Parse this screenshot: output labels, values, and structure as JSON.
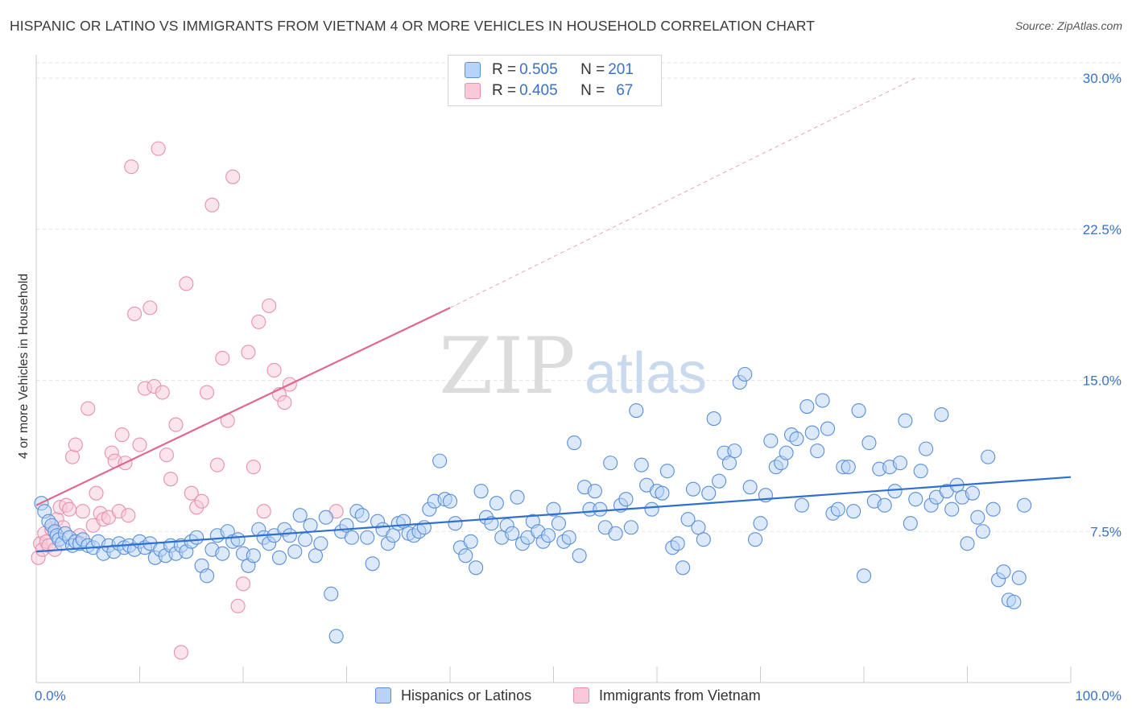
{
  "header": {
    "title": "HISPANIC OR LATINO VS IMMIGRANTS FROM VIETNAM 4 OR MORE VEHICLES IN HOUSEHOLD CORRELATION CHART",
    "source": "Source: ZipAtlas.com"
  },
  "watermark": {
    "zip": "ZIP",
    "atlas": "atlas"
  },
  "legend": {
    "rows": [
      {
        "r_label": "R = ",
        "r_value": "0.505",
        "n_label": "N = ",
        "n_value": "201"
      },
      {
        "r_label": "R = ",
        "r_value": "0.405",
        "n_label": "N = ",
        "n_value": "67"
      }
    ]
  },
  "bottom_legend": {
    "items": [
      "Hispanics or Latinos",
      "Immigrants from Vietnam"
    ]
  },
  "colors": {
    "blue_fill": "#b8d3f5",
    "blue_stroke": "#5a8fd6",
    "blue_line": "#2f6fd0",
    "pink_fill": "#f8c9d8",
    "pink_stroke": "#e890ac",
    "pink_line": "#e06890",
    "tick_label": "#3a72c8",
    "grid": "#e2e2e2"
  },
  "chart_data": {
    "type": "scatter",
    "title": "HISPANIC OR LATINO VS IMMIGRANTS FROM VIETNAM 4 OR MORE VEHICLES IN HOUSEHOLD CORRELATION CHART",
    "xlabel": "",
    "ylabel": "4 or more Vehicles in Household",
    "xlim": [
      0,
      100
    ],
    "ylim": [
      0,
      30.5
    ],
    "x_tick_labels": [
      "0.0%",
      "100.0%"
    ],
    "y_ticks": [
      7.5,
      15.0,
      22.5,
      30.0
    ],
    "y_tick_labels": [
      "7.5%",
      "15.0%",
      "22.5%",
      "30.0%"
    ],
    "grid": true,
    "series": [
      {
        "name": "Hispanics or Latinos",
        "trend": {
          "x": [
            0,
            100
          ],
          "y": [
            6.5,
            10.2
          ]
        },
        "points": [
          [
            0.5,
            8.9
          ],
          [
            0.8,
            8.5
          ],
          [
            1.2,
            8.0
          ],
          [
            1.5,
            7.8
          ],
          [
            1.8,
            7.5
          ],
          [
            2.0,
            7.3
          ],
          [
            2.2,
            7.1
          ],
          [
            2.5,
            6.9
          ],
          [
            2.8,
            7.4
          ],
          [
            3.2,
            7.2
          ],
          [
            3.5,
            6.8
          ],
          [
            3.8,
            7.0
          ],
          [
            4.2,
            6.9
          ],
          [
            4.5,
            7.1
          ],
          [
            5.0,
            6.8
          ],
          [
            5.5,
            6.7
          ],
          [
            6.0,
            7.0
          ],
          [
            6.5,
            6.4
          ],
          [
            7.0,
            6.8
          ],
          [
            7.5,
            6.5
          ],
          [
            8.0,
            6.9
          ],
          [
            8.5,
            6.7
          ],
          [
            9.0,
            6.8
          ],
          [
            9.5,
            6.6
          ],
          [
            10.0,
            7.0
          ],
          [
            10.5,
            6.7
          ],
          [
            11.0,
            6.9
          ],
          [
            11.5,
            6.2
          ],
          [
            12.0,
            6.6
          ],
          [
            12.5,
            6.3
          ],
          [
            13.0,
            6.8
          ],
          [
            13.5,
            6.4
          ],
          [
            14.0,
            6.8
          ],
          [
            14.5,
            6.5
          ],
          [
            15.0,
            7.0
          ],
          [
            15.5,
            7.2
          ],
          [
            16.0,
            5.8
          ],
          [
            16.5,
            5.3
          ],
          [
            17.0,
            6.6
          ],
          [
            17.5,
            7.3
          ],
          [
            18.0,
            6.4
          ],
          [
            18.5,
            7.5
          ],
          [
            19.0,
            7.0
          ],
          [
            19.5,
            7.1
          ],
          [
            20.0,
            6.4
          ],
          [
            20.5,
            5.8
          ],
          [
            21.0,
            6.3
          ],
          [
            21.5,
            7.6
          ],
          [
            22.0,
            7.2
          ],
          [
            22.5,
            6.9
          ],
          [
            23.0,
            7.3
          ],
          [
            23.5,
            6.2
          ],
          [
            24.0,
            7.6
          ],
          [
            24.5,
            7.3
          ],
          [
            25.0,
            6.5
          ],
          [
            25.5,
            8.3
          ],
          [
            26.0,
            7.1
          ],
          [
            26.5,
            7.8
          ],
          [
            27.0,
            6.3
          ],
          [
            27.5,
            6.9
          ],
          [
            28.0,
            8.2
          ],
          [
            28.5,
            4.4
          ],
          [
            29.0,
            2.3
          ],
          [
            29.5,
            7.5
          ],
          [
            30.0,
            7.8
          ],
          [
            30.5,
            7.2
          ],
          [
            31.0,
            8.5
          ],
          [
            31.5,
            8.3
          ],
          [
            32.0,
            7.2
          ],
          [
            32.5,
            5.9
          ],
          [
            33.0,
            8.0
          ],
          [
            33.5,
            7.6
          ],
          [
            34.0,
            6.9
          ],
          [
            34.5,
            7.3
          ],
          [
            35.0,
            7.9
          ],
          [
            35.5,
            8.0
          ],
          [
            36.0,
            7.4
          ],
          [
            36.5,
            7.3
          ],
          [
            37.0,
            7.5
          ],
          [
            37.5,
            7.7
          ],
          [
            38.0,
            8.6
          ],
          [
            38.5,
            9.0
          ],
          [
            39.0,
            11.0
          ],
          [
            39.5,
            9.1
          ],
          [
            40.0,
            9.0
          ],
          [
            40.5,
            7.9
          ],
          [
            41.0,
            6.7
          ],
          [
            41.5,
            6.3
          ],
          [
            42.0,
            7.0
          ],
          [
            42.5,
            5.7
          ],
          [
            43.0,
            9.5
          ],
          [
            43.5,
            8.2
          ],
          [
            44.0,
            7.9
          ],
          [
            44.5,
            8.9
          ],
          [
            45.0,
            7.2
          ],
          [
            45.5,
            7.8
          ],
          [
            46.0,
            7.4
          ],
          [
            46.5,
            9.2
          ],
          [
            47.0,
            6.9
          ],
          [
            47.5,
            7.2
          ],
          [
            48.0,
            8.0
          ],
          [
            48.5,
            7.5
          ],
          [
            49.0,
            7.0
          ],
          [
            49.5,
            7.3
          ],
          [
            50.0,
            8.6
          ],
          [
            50.5,
            7.9
          ],
          [
            51.0,
            7.0
          ],
          [
            51.5,
            7.2
          ],
          [
            52.0,
            11.9
          ],
          [
            52.5,
            6.3
          ],
          [
            53.0,
            9.7
          ],
          [
            53.5,
            8.6
          ],
          [
            54.0,
            9.5
          ],
          [
            54.5,
            8.6
          ],
          [
            55.0,
            7.7
          ],
          [
            55.5,
            10.9
          ],
          [
            56.0,
            7.4
          ],
          [
            56.5,
            8.8
          ],
          [
            57.0,
            9.1
          ],
          [
            57.5,
            7.7
          ],
          [
            58.0,
            13.5
          ],
          [
            58.5,
            10.8
          ],
          [
            59.0,
            9.8
          ],
          [
            59.5,
            8.6
          ],
          [
            60.0,
            9.5
          ],
          [
            60.5,
            9.4
          ],
          [
            61.0,
            10.5
          ],
          [
            61.5,
            6.7
          ],
          [
            62.0,
            6.9
          ],
          [
            62.5,
            5.7
          ],
          [
            63.0,
            8.1
          ],
          [
            63.5,
            9.6
          ],
          [
            64.0,
            7.7
          ],
          [
            64.5,
            7.1
          ],
          [
            65.0,
            9.4
          ],
          [
            65.5,
            13.1
          ],
          [
            66.0,
            10.0
          ],
          [
            66.5,
            11.4
          ],
          [
            67.0,
            10.9
          ],
          [
            67.5,
            11.5
          ],
          [
            68.0,
            14.9
          ],
          [
            68.5,
            15.3
          ],
          [
            69.0,
            9.7
          ],
          [
            69.5,
            7.1
          ],
          [
            70.0,
            7.9
          ],
          [
            70.5,
            9.3
          ],
          [
            71.0,
            12.0
          ],
          [
            71.5,
            10.7
          ],
          [
            72.0,
            10.9
          ],
          [
            72.5,
            11.4
          ],
          [
            73.0,
            12.3
          ],
          [
            73.5,
            12.1
          ],
          [
            74.0,
            8.8
          ],
          [
            74.5,
            13.7
          ],
          [
            75.0,
            12.4
          ],
          [
            75.5,
            11.5
          ],
          [
            76.0,
            14.0
          ],
          [
            76.5,
            12.6
          ],
          [
            77.0,
            8.4
          ],
          [
            77.5,
            8.6
          ],
          [
            78.0,
            10.7
          ],
          [
            78.5,
            10.7
          ],
          [
            79.0,
            8.5
          ],
          [
            79.5,
            13.5
          ],
          [
            80.0,
            5.3
          ],
          [
            80.5,
            11.9
          ],
          [
            81.0,
            9.0
          ],
          [
            81.5,
            10.6
          ],
          [
            82.0,
            8.8
          ],
          [
            82.5,
            10.7
          ],
          [
            83.0,
            9.5
          ],
          [
            83.5,
            10.9
          ],
          [
            84.0,
            13.0
          ],
          [
            84.5,
            7.9
          ],
          [
            85.0,
            9.1
          ],
          [
            85.5,
            10.5
          ],
          [
            86.0,
            11.6
          ],
          [
            86.5,
            8.8
          ],
          [
            87.0,
            9.2
          ],
          [
            87.5,
            13.3
          ],
          [
            88.0,
            9.5
          ],
          [
            88.5,
            8.6
          ],
          [
            89.0,
            9.8
          ],
          [
            89.5,
            9.2
          ],
          [
            90.0,
            6.9
          ],
          [
            90.5,
            9.4
          ],
          [
            91.0,
            8.2
          ],
          [
            91.5,
            7.5
          ],
          [
            92.0,
            11.2
          ],
          [
            92.5,
            8.6
          ],
          [
            93.0,
            5.1
          ],
          [
            93.5,
            5.5
          ],
          [
            94.0,
            4.1
          ],
          [
            94.5,
            4.0
          ],
          [
            95.0,
            5.2
          ],
          [
            95.5,
            8.8
          ]
        ]
      },
      {
        "name": "Immigrants from Vietnam",
        "trend": {
          "x": [
            0,
            40
          ],
          "y": [
            8.8,
            18.6
          ]
        },
        "trend_extension": {
          "x": [
            40,
            85
          ],
          "y": [
            18.6,
            30.0
          ]
        },
        "points": [
          [
            0.2,
            6.2
          ],
          [
            0.4,
            6.9
          ],
          [
            0.6,
            6.6
          ],
          [
            0.8,
            7.4
          ],
          [
            1.0,
            7.0
          ],
          [
            1.2,
            6.8
          ],
          [
            1.5,
            7.6
          ],
          [
            1.8,
            6.6
          ],
          [
            2.0,
            8.1
          ],
          [
            2.3,
            8.7
          ],
          [
            2.6,
            7.7
          ],
          [
            2.9,
            8.8
          ],
          [
            3.2,
            8.6
          ],
          [
            3.5,
            11.2
          ],
          [
            3.8,
            11.8
          ],
          [
            4.2,
            7.3
          ],
          [
            4.5,
            8.5
          ],
          [
            5.0,
            13.6
          ],
          [
            5.5,
            7.8
          ],
          [
            5.8,
            9.4
          ],
          [
            6.2,
            8.4
          ],
          [
            6.5,
            8.1
          ],
          [
            7.0,
            8.2
          ],
          [
            7.3,
            11.4
          ],
          [
            7.6,
            11.0
          ],
          [
            8.0,
            8.5
          ],
          [
            8.3,
            12.3
          ],
          [
            8.6,
            10.9
          ],
          [
            8.9,
            8.3
          ],
          [
            9.2,
            25.6
          ],
          [
            9.5,
            18.3
          ],
          [
            10.0,
            11.8
          ],
          [
            10.5,
            14.6
          ],
          [
            11.0,
            18.6
          ],
          [
            11.4,
            14.7
          ],
          [
            11.8,
            26.5
          ],
          [
            12.2,
            14.4
          ],
          [
            12.6,
            11.3
          ],
          [
            13.0,
            10.1
          ],
          [
            13.5,
            12.8
          ],
          [
            14.0,
            1.5
          ],
          [
            14.5,
            19.8
          ],
          [
            15.0,
            9.4
          ],
          [
            15.5,
            8.7
          ],
          [
            16.0,
            9.0
          ],
          [
            16.5,
            14.4
          ],
          [
            17.0,
            23.7
          ],
          [
            17.5,
            10.8
          ],
          [
            18.0,
            16.1
          ],
          [
            18.5,
            13.0
          ],
          [
            19.0,
            25.1
          ],
          [
            19.5,
            3.8
          ],
          [
            20.0,
            4.9
          ],
          [
            20.5,
            16.4
          ],
          [
            21.0,
            10.7
          ],
          [
            21.5,
            17.9
          ],
          [
            22.0,
            8.5
          ],
          [
            22.5,
            18.7
          ],
          [
            23.0,
            15.5
          ],
          [
            23.5,
            14.3
          ],
          [
            24.0,
            13.9
          ],
          [
            24.5,
            14.8
          ],
          [
            29.0,
            8.5
          ]
        ]
      }
    ]
  }
}
